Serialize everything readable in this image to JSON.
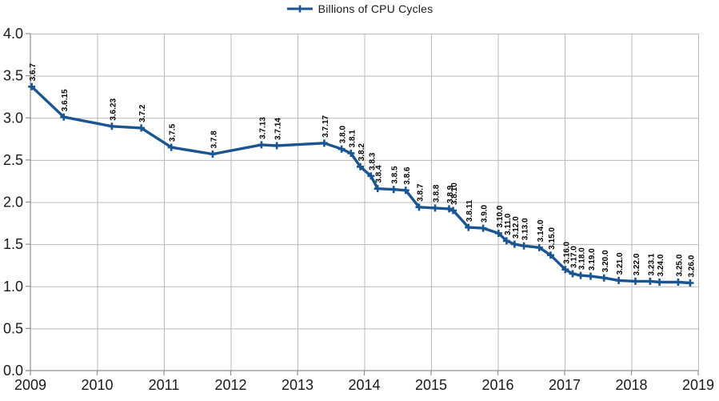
{
  "chart_data": {
    "type": "line",
    "title": "",
    "legend": [
      "Billions of CPU Cycles"
    ],
    "legend_position": "top-center",
    "xlabel": "",
    "ylabel": "",
    "xlim": [
      2009,
      2019
    ],
    "ylim": [
      0.0,
      4.0
    ],
    "x_ticks": [
      2009,
      2010,
      2011,
      2012,
      2013,
      2014,
      2015,
      2016,
      2017,
      2018,
      2019
    ],
    "y_ticks": [
      0.0,
      0.5,
      1.0,
      1.5,
      2.0,
      2.5,
      3.0,
      3.5,
      4.0
    ],
    "grid": true,
    "colors": {
      "series": "#1a5591",
      "grid": "#b9b9b9",
      "axis": "#8f8f8f",
      "text": "#1a1a1a",
      "data_label": "#000000",
      "background": "#ffffff"
    },
    "series": [
      {
        "name": "Billions of CPU Cycles",
        "marker": "plus",
        "points": [
          {
            "label": "3.6.7",
            "x": 2009.02,
            "y": 3.37
          },
          {
            "label": "3.6.15",
            "x": 2009.5,
            "y": 3.01
          },
          {
            "label": "3.6.23",
            "x": 2010.22,
            "y": 2.9
          },
          {
            "label": "3.7.2",
            "x": 2010.66,
            "y": 2.88
          },
          {
            "label": "3.7.5",
            "x": 2011.11,
            "y": 2.65
          },
          {
            "label": "3.7.8",
            "x": 2011.73,
            "y": 2.57
          },
          {
            "label": "3.7.13",
            "x": 2012.46,
            "y": 2.68
          },
          {
            "label": "3.7.14",
            "x": 2012.69,
            "y": 2.67
          },
          {
            "label": "3.7.17",
            "x": 2013.4,
            "y": 2.7
          },
          {
            "label": "3.8.0",
            "x": 2013.66,
            "y": 2.63
          },
          {
            "label": "3.8.1",
            "x": 2013.8,
            "y": 2.58
          },
          {
            "label": "3.8.2",
            "x": 2013.94,
            "y": 2.42
          },
          {
            "label": "3.8.3",
            "x": 2014.1,
            "y": 2.31
          },
          {
            "label": "3.8.4",
            "x": 2014.2,
            "y": 2.16
          },
          {
            "label": "3.8.5",
            "x": 2014.44,
            "y": 2.15
          },
          {
            "label": "3.8.6",
            "x": 2014.62,
            "y": 2.14
          },
          {
            "label": "3.8.7",
            "x": 2014.82,
            "y": 1.94
          },
          {
            "label": "3.8.8",
            "x": 2015.06,
            "y": 1.93
          },
          {
            "label": "3.8.9",
            "x": 2015.27,
            "y": 1.92
          },
          {
            "label": "3.8.10",
            "x": 2015.33,
            "y": 1.9
          },
          {
            "label": "3.8.11",
            "x": 2015.56,
            "y": 1.7
          },
          {
            "label": "3.9.0",
            "x": 2015.78,
            "y": 1.69
          },
          {
            "label": "3.10.0",
            "x": 2016.01,
            "y": 1.63
          },
          {
            "label": "3.11.0",
            "x": 2016.13,
            "y": 1.54
          },
          {
            "label": "3.12.0",
            "x": 2016.25,
            "y": 1.5
          },
          {
            "label": "3.13.0",
            "x": 2016.39,
            "y": 1.48
          },
          {
            "label": "3.14.0",
            "x": 2016.62,
            "y": 1.46
          },
          {
            "label": "3.15.0",
            "x": 2016.79,
            "y": 1.37
          },
          {
            "label": "3.16.0",
            "x": 2017.01,
            "y": 1.2
          },
          {
            "label": "3.17.0",
            "x": 2017.12,
            "y": 1.15
          },
          {
            "label": "3.18.0",
            "x": 2017.24,
            "y": 1.13
          },
          {
            "label": "3.19.0",
            "x": 2017.39,
            "y": 1.12
          },
          {
            "label": "3.20.0",
            "x": 2017.59,
            "y": 1.1
          },
          {
            "label": "3.21.0",
            "x": 2017.81,
            "y": 1.07
          },
          {
            "label": "3.22.0",
            "x": 2018.06,
            "y": 1.06
          },
          {
            "label": "3.23.1",
            "x": 2018.28,
            "y": 1.06
          },
          {
            "label": "3.24.0",
            "x": 2018.42,
            "y": 1.05
          },
          {
            "label": "3.25.0",
            "x": 2018.7,
            "y": 1.05
          },
          {
            "label": "3.26.0",
            "x": 2018.88,
            "y": 1.04
          }
        ]
      }
    ]
  }
}
